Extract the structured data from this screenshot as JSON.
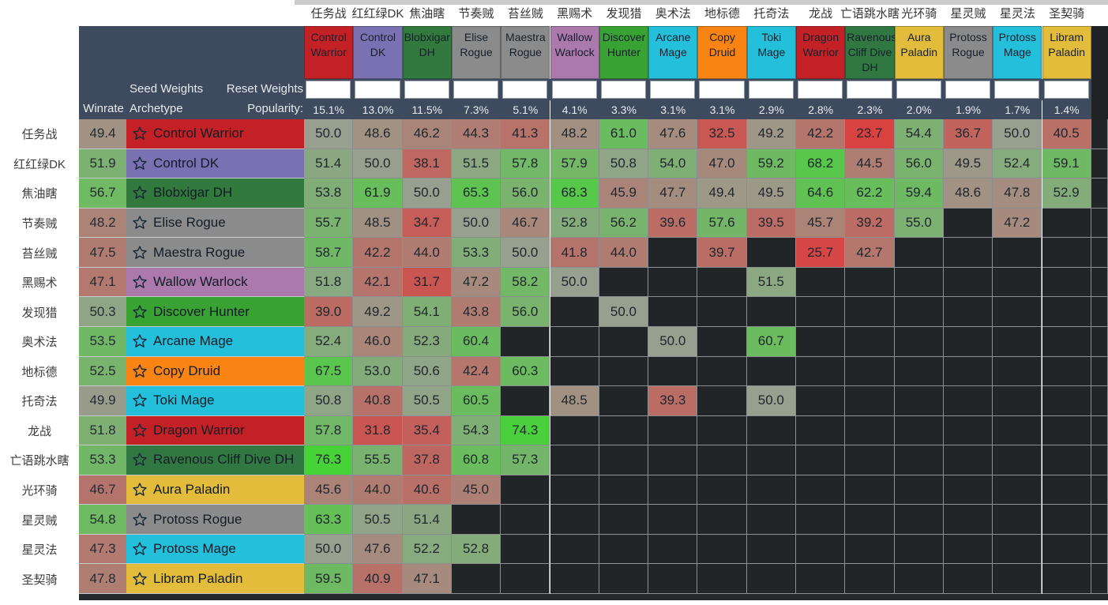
{
  "controls": {
    "seed_weights": "Seed Weights",
    "reset_weights": "Reset Weights",
    "winrate": "Winrate",
    "archetype": "Archetype",
    "popularity": "Popularity:"
  },
  "colors": {
    "header_navy": "#3E4A5E",
    "empty_cell": "#212528",
    "grid_line": "#8b8f92",
    "top_strip": "#cbcbcb",
    "bottom_strip": "#26292c",
    "scale": {
      "neutral": "#97A08F",
      "positive": "#46D337",
      "negative": "#D94141",
      "range": 27,
      "exponent": 0.65,
      "row_winrate_boost": 1.8,
      "row_winrate_cap": 0.5
    }
  },
  "columns": [
    {
      "cn_label": "任务战",
      "name": "Control Warrior",
      "class_color": "#C42127",
      "popularity": "15.1%",
      "weight_input": ""
    },
    {
      "cn_label": "红红绿DK",
      "name": "Control DK",
      "class_color": "#7A71B2",
      "popularity": "13.0%",
      "weight_input": ""
    },
    {
      "cn_label": "焦油瞎",
      "name": "Blobxigar DH",
      "class_color": "#31793C",
      "popularity": "11.5%",
      "weight_input": ""
    },
    {
      "cn_label": "节奏贼",
      "name": "Elise Rogue",
      "class_color": "#8B8B8B",
      "popularity": "7.3%",
      "weight_input": ""
    },
    {
      "cn_label": "苔丝贼",
      "name": "Maestra Rogue",
      "class_color": "#8B8B8B",
      "popularity": "5.1%",
      "weight_input": ""
    },
    {
      "cn_label": "黑赐术",
      "name": "Wallow Warlock",
      "class_color": "#AC79AC",
      "popularity": "4.1%",
      "weight_input": ""
    },
    {
      "cn_label": "发现猎",
      "name": "Discover Hunter",
      "class_color": "#38A233",
      "popularity": "3.3%",
      "weight_input": ""
    },
    {
      "cn_label": "奥术法",
      "name": "Arcane Mage",
      "class_color": "#24BFDA",
      "popularity": "3.1%",
      "weight_input": ""
    },
    {
      "cn_label": "地标德",
      "name": "Copy Druid",
      "class_color": "#F98414",
      "popularity": "3.1%",
      "weight_input": ""
    },
    {
      "cn_label": "托奇法",
      "name": "Toki Mage",
      "class_color": "#24BFDA",
      "popularity": "2.9%",
      "weight_input": ""
    },
    {
      "cn_label": "龙战",
      "name": "Dragon Warrior",
      "class_color": "#C42127",
      "popularity": "2.8%",
      "weight_input": ""
    },
    {
      "cn_label": "亡语跳水瞎",
      "name": "Ravenous Cliff Dive DH",
      "class_color": "#317742",
      "popularity": "2.3%",
      "weight_input": ""
    },
    {
      "cn_label": "光环骑",
      "name": "Aura Paladin",
      "class_color": "#E2BC3A",
      "popularity": "2.0%",
      "weight_input": ""
    },
    {
      "cn_label": "星灵贼",
      "name": "Protoss Rogue",
      "class_color": "#8B8B8B",
      "popularity": "1.9%",
      "weight_input": ""
    },
    {
      "cn_label": "星灵法",
      "name": "Protoss Mage",
      "class_color": "#24BFDA",
      "popularity": "1.7%",
      "weight_input": ""
    },
    {
      "cn_label": "圣契骑",
      "name": "Libram Paladin",
      "class_color": "#E2BC3A",
      "popularity": "1.4%",
      "weight_input": ""
    }
  ],
  "rows": [
    {
      "cn_label": "任务战",
      "winrate": 49.4,
      "name": "Control Warrior",
      "class_color": "#C42127",
      "matchups": [
        50.0,
        48.6,
        46.2,
        44.3,
        41.3,
        48.2,
        61.0,
        47.6,
        32.5,
        49.2,
        42.2,
        23.7,
        54.4,
        36.7,
        50.0,
        40.5
      ]
    },
    {
      "cn_label": "红红绿DK",
      "winrate": 51.9,
      "name": "Control DK",
      "class_color": "#7A71B2",
      "matchups": [
        51.4,
        50.0,
        38.1,
        51.5,
        57.8,
        57.9,
        50.8,
        54.0,
        47.0,
        59.2,
        68.2,
        44.5,
        56.0,
        49.5,
        52.4,
        59.1
      ]
    },
    {
      "cn_label": "焦油瞎",
      "winrate": 56.7,
      "name": "Blobxigar DH",
      "class_color": "#31793C",
      "matchups": [
        53.8,
        61.9,
        50.0,
        65.3,
        56.0,
        68.3,
        45.9,
        47.7,
        49.4,
        49.5,
        64.6,
        62.2,
        59.4,
        48.6,
        47.8,
        52.9
      ]
    },
    {
      "cn_label": "节奏贼",
      "winrate": 48.2,
      "name": "Elise Rogue",
      "class_color": "#8B8B8B",
      "matchups": [
        55.7,
        48.5,
        34.7,
        50.0,
        46.7,
        52.8,
        56.2,
        39.6,
        57.6,
        39.5,
        45.7,
        39.2,
        55.0,
        null,
        47.2,
        null
      ]
    },
    {
      "cn_label": "苔丝贼",
      "winrate": 47.5,
      "name": "Maestra Rogue",
      "class_color": "#8B8B8B",
      "matchups": [
        58.7,
        42.2,
        44.0,
        53.3,
        50.0,
        41.8,
        44.0,
        null,
        39.7,
        null,
        25.7,
        42.7,
        null,
        null,
        null,
        null
      ]
    },
    {
      "cn_label": "黑赐术",
      "winrate": 47.1,
      "name": "Wallow Warlock",
      "class_color": "#AC79AC",
      "matchups": [
        51.8,
        42.1,
        31.7,
        47.2,
        58.2,
        50.0,
        null,
        null,
        null,
        51.5,
        null,
        null,
        null,
        null,
        null,
        null
      ]
    },
    {
      "cn_label": "发现猎",
      "winrate": 50.3,
      "name": "Discover Hunter",
      "class_color": "#38A233",
      "matchups": [
        39.0,
        49.2,
        54.1,
        43.8,
        56.0,
        null,
        50.0,
        null,
        null,
        null,
        null,
        null,
        null,
        null,
        null,
        null
      ]
    },
    {
      "cn_label": "奥术法",
      "winrate": 53.5,
      "name": "Arcane Mage",
      "class_color": "#24BFDA",
      "matchups": [
        52.4,
        46.0,
        52.3,
        60.4,
        null,
        null,
        null,
        50.0,
        null,
        60.7,
        null,
        null,
        null,
        null,
        null,
        null
      ]
    },
    {
      "cn_label": "地标德",
      "winrate": 52.5,
      "name": "Copy Druid",
      "class_color": "#F98414",
      "matchups": [
        67.5,
        53.0,
        50.6,
        42.4,
        60.3,
        null,
        null,
        null,
        null,
        null,
        null,
        null,
        null,
        null,
        null,
        null
      ]
    },
    {
      "cn_label": "托奇法",
      "winrate": 49.9,
      "name": "Toki Mage",
      "class_color": "#24BFDA",
      "matchups": [
        50.8,
        40.8,
        50.5,
        60.5,
        null,
        48.5,
        null,
        39.3,
        null,
        50.0,
        null,
        null,
        null,
        null,
        null,
        null
      ]
    },
    {
      "cn_label": "龙战",
      "winrate": 51.8,
      "name": "Dragon Warrior",
      "class_color": "#C42127",
      "matchups": [
        57.8,
        31.8,
        35.4,
        54.3,
        74.3,
        null,
        null,
        null,
        null,
        null,
        null,
        null,
        null,
        null,
        null,
        null
      ]
    },
    {
      "cn_label": "亡语跳水瞎",
      "winrate": 53.3,
      "name": "Ravenous Cliff Dive DH",
      "class_color": "#317742",
      "matchups": [
        76.3,
        55.5,
        37.8,
        60.8,
        57.3,
        null,
        null,
        null,
        null,
        null,
        null,
        null,
        null,
        null,
        null,
        null
      ]
    },
    {
      "cn_label": "光环骑",
      "winrate": 46.7,
      "name": "Aura Paladin",
      "class_color": "#E2BC3A",
      "matchups": [
        45.6,
        44.0,
        40.6,
        45.0,
        null,
        null,
        null,
        null,
        null,
        null,
        null,
        null,
        null,
        null,
        null,
        null
      ]
    },
    {
      "cn_label": "星灵贼",
      "winrate": 54.8,
      "name": "Protoss Rogue",
      "class_color": "#8B8B8B",
      "matchups": [
        63.3,
        50.5,
        51.4,
        null,
        null,
        null,
        null,
        null,
        null,
        null,
        null,
        null,
        null,
        null,
        null,
        null
      ]
    },
    {
      "cn_label": "星灵法",
      "winrate": 47.3,
      "name": "Protoss Mage",
      "class_color": "#24BFDA",
      "matchups": [
        50.0,
        47.6,
        52.2,
        52.8,
        null,
        null,
        null,
        null,
        null,
        null,
        null,
        null,
        null,
        null,
        null,
        null
      ]
    },
    {
      "cn_label": "圣契骑",
      "winrate": 47.8,
      "name": "Libram Paladin",
      "class_color": "#E2BC3A",
      "matchups": [
        59.5,
        40.9,
        47.1,
        null,
        null,
        null,
        null,
        null,
        null,
        null,
        null,
        null,
        null,
        null,
        null,
        null
      ]
    }
  ]
}
